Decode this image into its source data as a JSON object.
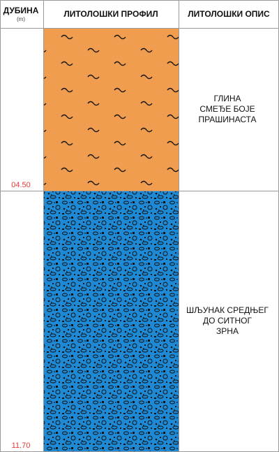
{
  "header": {
    "depth_title": "ДУБИНА",
    "depth_unit": "(m)",
    "profile_title": "ЛИТОЛОШКИ ПРОФИЛ",
    "description_title": "ЛИТОЛОШКИ ОПИС"
  },
  "depth_color": "#e8393a",
  "grid_color": "#999999",
  "layers": [
    {
      "bottom_depth": "04.50",
      "bottom_m": 4.5,
      "pattern": "tilde",
      "fill_color": "#f09d50",
      "description_lines": [
        "ГЛИНА",
        "СМЕЂЕ БОЈЕ",
        "ПРАШИНАСТА"
      ]
    },
    {
      "bottom_depth": "11.70",
      "bottom_m": 11.7,
      "pattern": "gravel",
      "fill_color": "#1e8ad6",
      "description_lines": [
        "ШЉУНАК СРЕДЊЕГ",
        "ДО СИТНОГ",
        "ЗРНА"
      ]
    }
  ]
}
